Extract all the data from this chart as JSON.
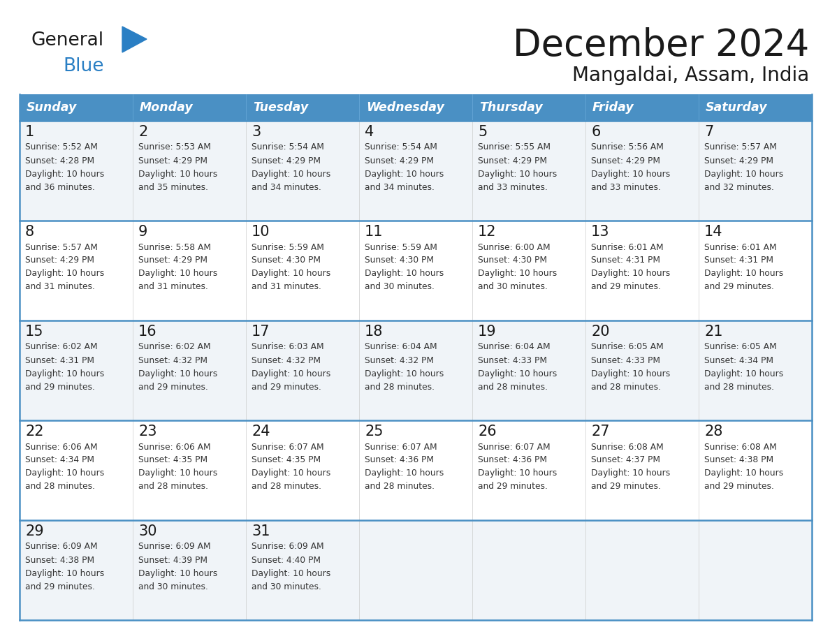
{
  "title": "December 2024",
  "subtitle": "Mangaldai, Assam, India",
  "header_color": "#4a90c4",
  "header_text_color": "#ffffff",
  "bg_color": "#ffffff",
  "cell_bg_odd": "#f0f4f8",
  "cell_bg_even": "#ffffff",
  "border_color": "#4a90c4",
  "text_color": "#333333",
  "day_num_color": "#1a1a1a",
  "days_of_week": [
    "Sunday",
    "Monday",
    "Tuesday",
    "Wednesday",
    "Thursday",
    "Friday",
    "Saturday"
  ],
  "calendar_data": [
    [
      {
        "day": 1,
        "sunrise": "5:52 AM",
        "sunset": "4:28 PM",
        "daylight": "10 hours and 36 minutes."
      },
      {
        "day": 2,
        "sunrise": "5:53 AM",
        "sunset": "4:29 PM",
        "daylight": "10 hours and 35 minutes."
      },
      {
        "day": 3,
        "sunrise": "5:54 AM",
        "sunset": "4:29 PM",
        "daylight": "10 hours and 34 minutes."
      },
      {
        "day": 4,
        "sunrise": "5:54 AM",
        "sunset": "4:29 PM",
        "daylight": "10 hours and 34 minutes."
      },
      {
        "day": 5,
        "sunrise": "5:55 AM",
        "sunset": "4:29 PM",
        "daylight": "10 hours and 33 minutes."
      },
      {
        "day": 6,
        "sunrise": "5:56 AM",
        "sunset": "4:29 PM",
        "daylight": "10 hours and 33 minutes."
      },
      {
        "day": 7,
        "sunrise": "5:57 AM",
        "sunset": "4:29 PM",
        "daylight": "10 hours and 32 minutes."
      }
    ],
    [
      {
        "day": 8,
        "sunrise": "5:57 AM",
        "sunset": "4:29 PM",
        "daylight": "10 hours and 31 minutes."
      },
      {
        "day": 9,
        "sunrise": "5:58 AM",
        "sunset": "4:29 PM",
        "daylight": "10 hours and 31 minutes."
      },
      {
        "day": 10,
        "sunrise": "5:59 AM",
        "sunset": "4:30 PM",
        "daylight": "10 hours and 31 minutes."
      },
      {
        "day": 11,
        "sunrise": "5:59 AM",
        "sunset": "4:30 PM",
        "daylight": "10 hours and 30 minutes."
      },
      {
        "day": 12,
        "sunrise": "6:00 AM",
        "sunset": "4:30 PM",
        "daylight": "10 hours and 30 minutes."
      },
      {
        "day": 13,
        "sunrise": "6:01 AM",
        "sunset": "4:31 PM",
        "daylight": "10 hours and 29 minutes."
      },
      {
        "day": 14,
        "sunrise": "6:01 AM",
        "sunset": "4:31 PM",
        "daylight": "10 hours and 29 minutes."
      }
    ],
    [
      {
        "day": 15,
        "sunrise": "6:02 AM",
        "sunset": "4:31 PM",
        "daylight": "10 hours and 29 minutes."
      },
      {
        "day": 16,
        "sunrise": "6:02 AM",
        "sunset": "4:32 PM",
        "daylight": "10 hours and 29 minutes."
      },
      {
        "day": 17,
        "sunrise": "6:03 AM",
        "sunset": "4:32 PM",
        "daylight": "10 hours and 29 minutes."
      },
      {
        "day": 18,
        "sunrise": "6:04 AM",
        "sunset": "4:32 PM",
        "daylight": "10 hours and 28 minutes."
      },
      {
        "day": 19,
        "sunrise": "6:04 AM",
        "sunset": "4:33 PM",
        "daylight": "10 hours and 28 minutes."
      },
      {
        "day": 20,
        "sunrise": "6:05 AM",
        "sunset": "4:33 PM",
        "daylight": "10 hours and 28 minutes."
      },
      {
        "day": 21,
        "sunrise": "6:05 AM",
        "sunset": "4:34 PM",
        "daylight": "10 hours and 28 minutes."
      }
    ],
    [
      {
        "day": 22,
        "sunrise": "6:06 AM",
        "sunset": "4:34 PM",
        "daylight": "10 hours and 28 minutes."
      },
      {
        "day": 23,
        "sunrise": "6:06 AM",
        "sunset": "4:35 PM",
        "daylight": "10 hours and 28 minutes."
      },
      {
        "day": 24,
        "sunrise": "6:07 AM",
        "sunset": "4:35 PM",
        "daylight": "10 hours and 28 minutes."
      },
      {
        "day": 25,
        "sunrise": "6:07 AM",
        "sunset": "4:36 PM",
        "daylight": "10 hours and 28 minutes."
      },
      {
        "day": 26,
        "sunrise": "6:07 AM",
        "sunset": "4:36 PM",
        "daylight": "10 hours and 29 minutes."
      },
      {
        "day": 27,
        "sunrise": "6:08 AM",
        "sunset": "4:37 PM",
        "daylight": "10 hours and 29 minutes."
      },
      {
        "day": 28,
        "sunrise": "6:08 AM",
        "sunset": "4:38 PM",
        "daylight": "10 hours and 29 minutes."
      }
    ],
    [
      {
        "day": 29,
        "sunrise": "6:09 AM",
        "sunset": "4:38 PM",
        "daylight": "10 hours and 29 minutes."
      },
      {
        "day": 30,
        "sunrise": "6:09 AM",
        "sunset": "4:39 PM",
        "daylight": "10 hours and 30 minutes."
      },
      {
        "day": 31,
        "sunrise": "6:09 AM",
        "sunset": "4:40 PM",
        "daylight": "10 hours and 30 minutes."
      },
      null,
      null,
      null,
      null
    ]
  ],
  "logo_general_color": "#1a1a1a",
  "logo_blue_color": "#2a7fc4",
  "logo_triangle_color": "#2a7fc4"
}
